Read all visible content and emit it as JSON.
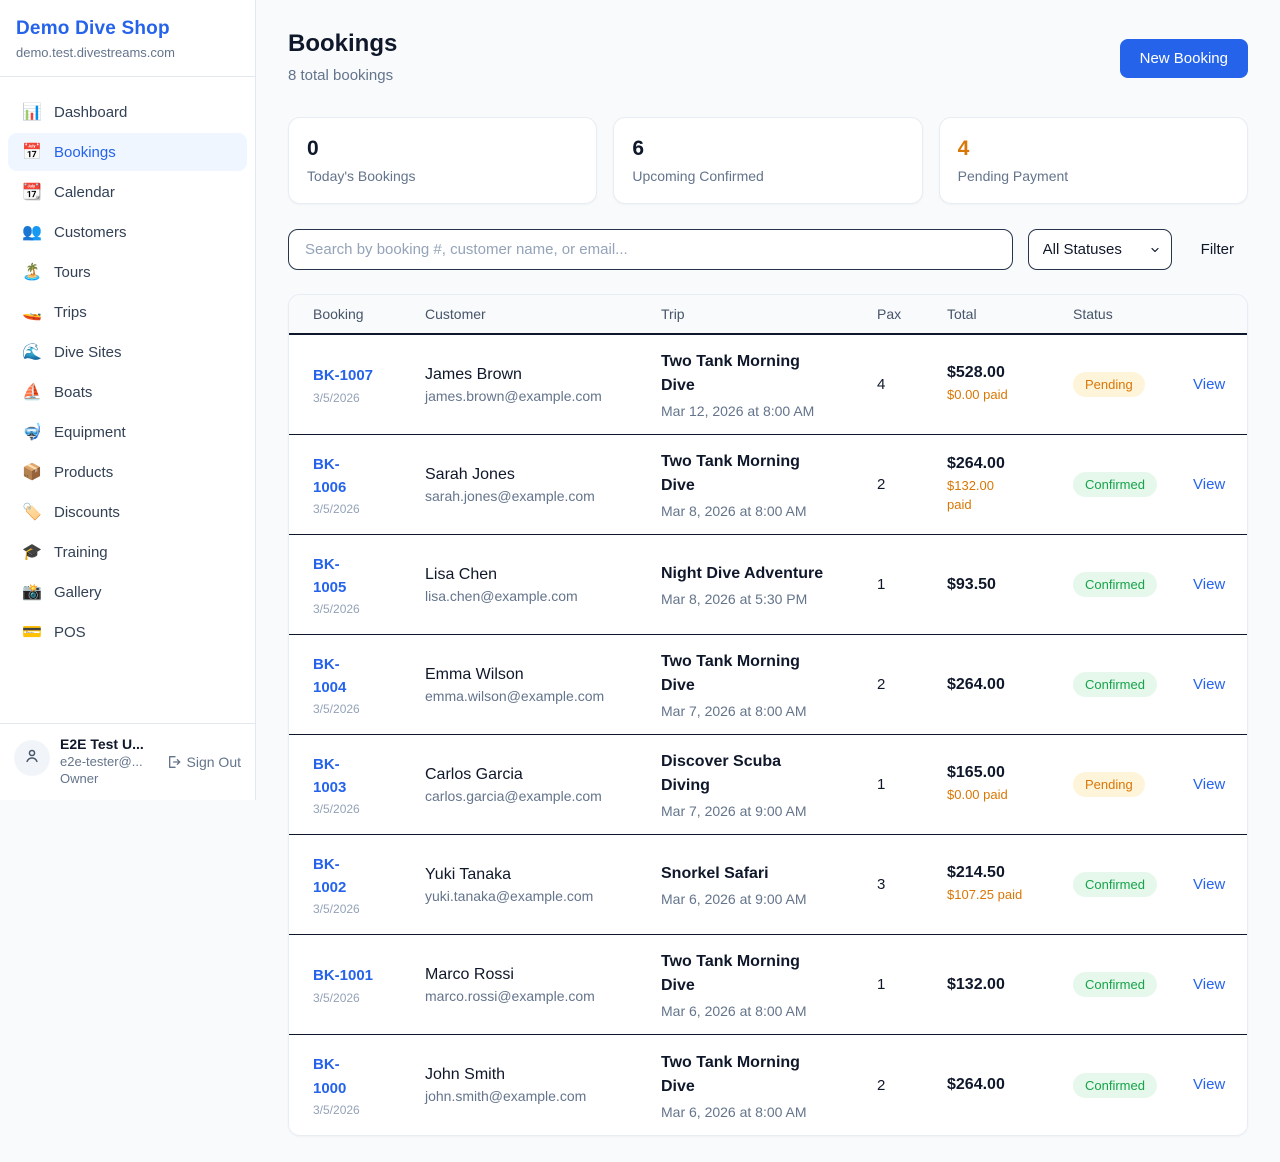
{
  "sidebar": {
    "brand": "Demo Dive Shop",
    "domain": "demo.test.divestreams.com",
    "items": [
      {
        "name": "dashboard",
        "icon": "📊",
        "label": "Dashboard",
        "active": false
      },
      {
        "name": "bookings",
        "icon": "📅",
        "label": "Bookings",
        "active": true
      },
      {
        "name": "calendar",
        "icon": "📆",
        "label": "Calendar",
        "active": false
      },
      {
        "name": "customers",
        "icon": "👥",
        "label": "Customers",
        "active": false
      },
      {
        "name": "tours",
        "icon": "🏝️",
        "label": "Tours",
        "active": false
      },
      {
        "name": "trips",
        "icon": "🚤",
        "label": "Trips",
        "active": false
      },
      {
        "name": "dive-sites",
        "icon": "🌊",
        "label": "Dive Sites",
        "active": false
      },
      {
        "name": "boats",
        "icon": "⛵",
        "label": "Boats",
        "active": false
      },
      {
        "name": "equipment",
        "icon": "🤿",
        "label": "Equipment",
        "active": false
      },
      {
        "name": "products",
        "icon": "📦",
        "label": "Products",
        "active": false
      },
      {
        "name": "discounts",
        "icon": "🏷️",
        "label": "Discounts",
        "active": false
      },
      {
        "name": "training",
        "icon": "🎓",
        "label": "Training",
        "active": false
      },
      {
        "name": "gallery",
        "icon": "📸",
        "label": "Gallery",
        "active": false
      },
      {
        "name": "pos",
        "icon": "💳",
        "label": "POS",
        "active": false
      }
    ],
    "user": {
      "name": "E2E Test U...",
      "email": "e2e-tester@...",
      "role": "Owner",
      "signout_label": "Sign Out"
    }
  },
  "header": {
    "title": "Bookings",
    "subtitle": "8 total bookings",
    "new_booking_label": "New Booking"
  },
  "stats": {
    "cards": [
      {
        "value": "0",
        "label": "Today's Bookings",
        "warn": false
      },
      {
        "value": "6",
        "label": "Upcoming Confirmed",
        "warn": false
      },
      {
        "value": "4",
        "label": "Pending Payment",
        "warn": true
      }
    ]
  },
  "filters": {
    "search_placeholder": "Search by booking #, customer name, or email...",
    "status_selected": "All Statuses",
    "filter_label": "Filter"
  },
  "colors": {
    "accent_blue": "#2563eb",
    "warn_orange": "#d97706",
    "confirmed_green": "#16a34a",
    "pending_badge_bg": "#fdf4da",
    "confirmed_badge_bg": "#e6f7ec"
  },
  "table": {
    "columns": [
      "Booking",
      "Customer",
      "Trip",
      "Pax",
      "Total",
      "Status",
      ""
    ],
    "view_label": "View",
    "rows": [
      {
        "id": "BK-1007",
        "date": "3/5/2026",
        "customer": "James Brown",
        "email": "james.brown@example.com",
        "trip": "Two Tank Morning\nDive",
        "trip_time": "Mar 12, 2026 at 8:00 AM",
        "pax": "4",
        "total": "$528.00",
        "paid": "$0.00 paid",
        "status": "Pending"
      },
      {
        "id": "BK-\n1006",
        "date": "3/5/2026",
        "customer": "Sarah Jones",
        "email": "sarah.jones@example.com",
        "trip": "Two Tank Morning\nDive",
        "trip_time": "Mar 8, 2026 at 8:00 AM",
        "pax": "2",
        "total": "$264.00",
        "paid": "$132.00\npaid",
        "status": "Confirmed"
      },
      {
        "id": "BK-\n1005",
        "date": "3/5/2026",
        "customer": "Lisa Chen",
        "email": "lisa.chen@example.com",
        "trip": "Night Dive Adventure",
        "trip_time": "Mar 8, 2026 at 5:30 PM",
        "pax": "1",
        "total": "$93.50",
        "paid": "",
        "status": "Confirmed"
      },
      {
        "id": "BK-\n1004",
        "date": "3/5/2026",
        "customer": "Emma Wilson",
        "email": "emma.wilson@example.com",
        "trip": "Two Tank Morning\nDive",
        "trip_time": "Mar 7, 2026 at 8:00 AM",
        "pax": "2",
        "total": "$264.00",
        "paid": "",
        "status": "Confirmed"
      },
      {
        "id": "BK-\n1003",
        "date": "3/5/2026",
        "customer": "Carlos Garcia",
        "email": "carlos.garcia@example.com",
        "trip": "Discover Scuba\nDiving",
        "trip_time": "Mar 7, 2026 at 9:00 AM",
        "pax": "1",
        "total": "$165.00",
        "paid": "$0.00 paid",
        "status": "Pending"
      },
      {
        "id": "BK-\n1002",
        "date": "3/5/2026",
        "customer": "Yuki Tanaka",
        "email": "yuki.tanaka@example.com",
        "trip": "Snorkel Safari",
        "trip_time": "Mar 6, 2026 at 9:00 AM",
        "pax": "3",
        "total": "$214.50",
        "paid": "$107.25 paid",
        "status": "Confirmed"
      },
      {
        "id": "BK-1001",
        "date": "3/5/2026",
        "customer": "Marco Rossi",
        "email": "marco.rossi@example.com",
        "trip": "Two Tank Morning\nDive",
        "trip_time": "Mar 6, 2026 at 8:00 AM",
        "pax": "1",
        "total": "$132.00",
        "paid": "",
        "status": "Confirmed"
      },
      {
        "id": "BK-\n1000",
        "date": "3/5/2026",
        "customer": "John Smith",
        "email": "john.smith@example.com",
        "trip": "Two Tank Morning\nDive",
        "trip_time": "Mar 6, 2026 at 8:00 AM",
        "pax": "2",
        "total": "$264.00",
        "paid": "",
        "status": "Confirmed"
      }
    ]
  }
}
